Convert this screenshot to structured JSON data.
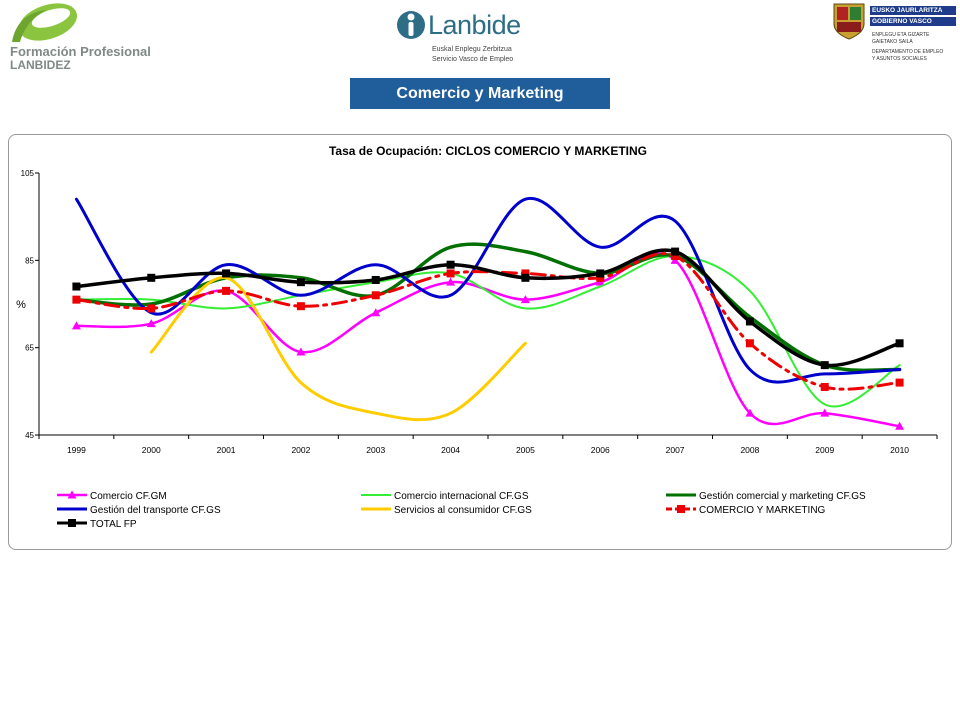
{
  "logos": {
    "formacion": {
      "line1": "Formación Profesional",
      "line2": "LANBIDEZ"
    },
    "lanbide": {
      "name": "Lanbide",
      "sub1": "Euskal Enplegu Zerbitzua",
      "sub2": "Servicio Vasco de Empleo"
    },
    "gobierno": {
      "bar1": "EUSKO JAURLARITZA",
      "bar2": "GOBIERNO VASCO",
      "line1": "ENPLEGU ETA GIZARTE",
      "line2": "GAIETAKO SAILA",
      "line3": "DEPARTAMENTO DE EMPLEO",
      "line4": "Y ASUNTOS SOCIALES"
    }
  },
  "banner": {
    "title": "Comercio y Marketing"
  },
  "chart_data": {
    "type": "line",
    "title": "Tasa de Ocupación: CICLOS COMERCIO Y MARKETING",
    "ylabel": "%",
    "xlabel": "",
    "categories": [
      "1999",
      "2000",
      "2001",
      "2002",
      "2003",
      "2004",
      "2005",
      "2006",
      "2007",
      "2008",
      "2009",
      "2010"
    ],
    "ylim": [
      45,
      105
    ],
    "yticks": [
      45,
      65,
      85,
      105
    ],
    "legend_position": "bottom",
    "series": [
      {
        "name": "Comercio CF.GM",
        "color": "#ff00ff",
        "width": 2.5,
        "dash": "",
        "marker": "triangle",
        "values": [
          70,
          70.5,
          78,
          64,
          73,
          80,
          76,
          80,
          85,
          50,
          50,
          47
        ]
      },
      {
        "name": "Comercio internacional CF.GS",
        "color": "#33ee33",
        "width": 2,
        "dash": "",
        "marker": "none",
        "values": [
          76,
          76,
          74,
          77,
          80,
          82,
          74,
          79,
          86,
          78,
          52,
          61
        ]
      },
      {
        "name": "Gestión comercial y marketing CF.GS",
        "color": "#007000",
        "width": 3.5,
        "dash": "",
        "marker": "none",
        "values": [
          76,
          75,
          81,
          81,
          77,
          88,
          87,
          82,
          86,
          72,
          61,
          60
        ]
      },
      {
        "name": "Gestión del transporte CF.GS",
        "color": "#0000cc",
        "width": 3,
        "dash": "",
        "marker": "none",
        "values": [
          99,
          73,
          84,
          77,
          84,
          77,
          99,
          88,
          94,
          60,
          59,
          60
        ]
      },
      {
        "name": "Servicios al consumidor CF.GS",
        "color": "#ffcc00",
        "width": 3,
        "dash": "",
        "marker": "none",
        "values": [
          null,
          64,
          81,
          57,
          50,
          50,
          66,
          null,
          null,
          null,
          null,
          null
        ]
      },
      {
        "name": "COMERCIO Y MARKETING",
        "color": "#ee0000",
        "width": 3,
        "dash": "14,6,3,6",
        "marker": "square",
        "values": [
          76,
          74,
          78,
          74.5,
          77,
          82,
          82,
          81,
          86,
          66,
          56,
          57
        ]
      },
      {
        "name": "TOTAL FP",
        "color": "#000000",
        "width": 3.5,
        "dash": "",
        "marker": "square",
        "values": [
          79,
          81,
          82,
          80,
          80.5,
          84,
          81,
          82,
          87,
          71,
          61,
          66
        ]
      }
    ]
  }
}
